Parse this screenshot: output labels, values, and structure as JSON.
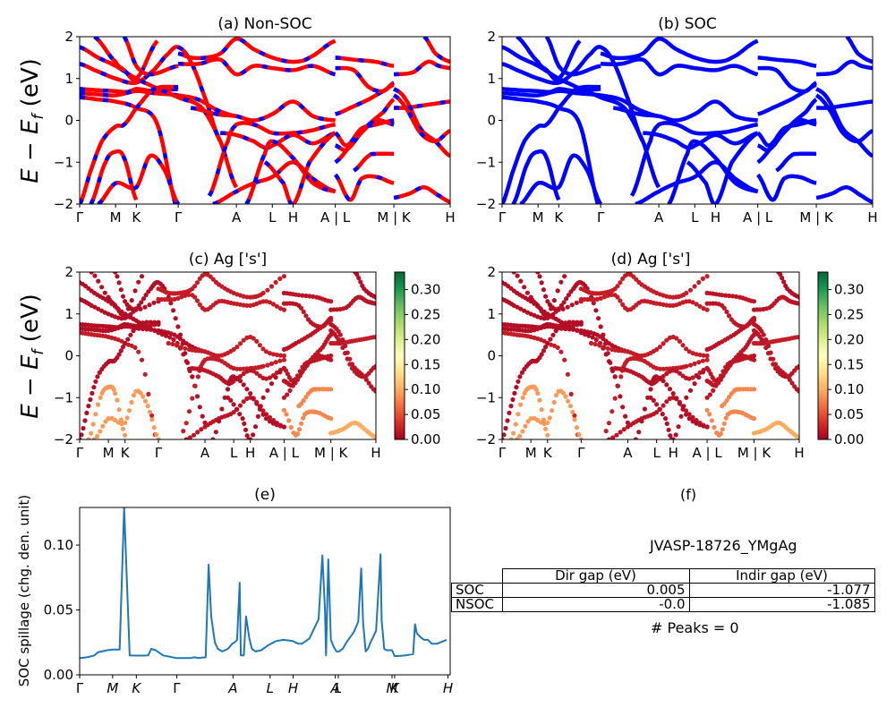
{
  "figure": {
    "ylabel_energy": "E − E_f (eV)",
    "kpath_labels": [
      "Γ",
      "M",
      "K",
      "Γ",
      "A",
      "L",
      "H",
      "A | L",
      "M | K",
      "H"
    ]
  },
  "chart_data": [
    {
      "id": "a",
      "type": "line",
      "title": "(a) Non-SOC",
      "ylabel": "E − E_f (eV)",
      "ylim": [
        -2,
        2
      ],
      "yticks": [
        "2",
        "1",
        "0",
        "−1",
        "−2"
      ],
      "ytick_values": [
        2,
        1,
        0,
        -1,
        -2
      ],
      "xticks": [
        "Γ",
        "M",
        "K",
        "Γ",
        "A",
        "L",
        "H",
        "A | L",
        "M | K",
        "H"
      ],
      "xtick_positions": [
        0,
        0.097,
        0.153,
        0.266,
        0.423,
        0.52,
        0.576,
        0.69,
        0.848,
        1.0
      ],
      "style": "red line with blue dashes",
      "colors": {
        "base": "#ff0000",
        "dash": "#0000ff"
      },
      "series_ref": "bands"
    },
    {
      "id": "b",
      "type": "line",
      "title": "(b) SOC",
      "ylim": [
        -2,
        2
      ],
      "yticks": [
        "2",
        "1",
        "0",
        "−1",
        "−2"
      ],
      "ytick_values": [
        2,
        1,
        0,
        -1,
        -2
      ],
      "xticks": [
        "Γ",
        "M",
        "K",
        "Γ",
        "A",
        "L",
        "H",
        "A | L",
        "M | K",
        "H"
      ],
      "xtick_positions": [
        0,
        0.097,
        0.153,
        0.266,
        0.423,
        0.52,
        0.576,
        0.69,
        0.848,
        1.0
      ],
      "colors": {
        "base": "#0000ff"
      },
      "series_ref": "bands"
    },
    {
      "id": "c",
      "type": "scatter",
      "title": "(c)  Ag ['s']",
      "ylabel": "E − E_f (eV)",
      "ylim": [
        -2,
        2
      ],
      "yticks": [
        "2",
        "1",
        "0",
        "−1",
        "−2"
      ],
      "ytick_values": [
        2,
        1,
        0,
        -1,
        -2
      ],
      "xticks": [
        "Γ",
        "M",
        "K",
        "Γ",
        "A",
        "L",
        "H",
        "A | L",
        "M | K",
        "H"
      ],
      "xtick_positions": [
        0,
        0.097,
        0.153,
        0.266,
        0.423,
        0.52,
        0.576,
        0.69,
        0.848,
        1.0
      ],
      "colorbar": {
        "cmap": "RdYlGn",
        "range": [
          0,
          0.335
        ],
        "ticks": [
          "0.00",
          "0.05",
          "0.10",
          "0.15",
          "0.20",
          "0.25",
          "0.30"
        ],
        "tick_values": [
          0,
          0.05,
          0.1,
          0.15,
          0.2,
          0.25,
          0.3
        ]
      },
      "series_ref": "bands"
    },
    {
      "id": "d",
      "type": "scatter",
      "title": "(d) Ag ['s']",
      "ylim": [
        -2,
        2
      ],
      "yticks": [
        "2",
        "1",
        "0",
        "−1",
        "−2"
      ],
      "ytick_values": [
        2,
        1,
        0,
        -1,
        -2
      ],
      "xticks": [
        "Γ",
        "M",
        "K",
        "Γ",
        "A",
        "L",
        "H",
        "A | L",
        "M | K",
        "H"
      ],
      "xtick_positions": [
        0,
        0.097,
        0.153,
        0.266,
        0.423,
        0.52,
        0.576,
        0.69,
        0.848,
        1.0
      ],
      "colorbar": {
        "cmap": "RdYlGn",
        "range": [
          0,
          0.335
        ],
        "ticks": [
          "0.00",
          "0.05",
          "0.10",
          "0.15",
          "0.20",
          "0.25",
          "0.30"
        ],
        "tick_values": [
          0,
          0.05,
          0.1,
          0.15,
          0.2,
          0.25,
          0.3
        ]
      },
      "series_ref": "bands"
    },
    {
      "id": "e",
      "type": "line",
      "title": "(e)",
      "ylabel": "SOC spillage (chg. den. unit)",
      "ylim": [
        0,
        0.129
      ],
      "xlim": [
        0,
        1
      ],
      "yticks": [
        "0.00",
        "0.05",
        "0.10"
      ],
      "ytick_values": [
        0,
        0.05,
        0.1
      ],
      "xticks": [
        "Γ",
        "M",
        "K",
        "Γ",
        "A",
        "L",
        "H",
        "A",
        "L",
        "M",
        "K",
        "H"
      ],
      "xtick_positions": [
        0,
        0.089,
        0.153,
        0.262,
        0.414,
        0.514,
        0.576,
        0.69,
        0.698,
        0.843,
        0.85,
        0.994
      ],
      "color": "#1f77b4",
      "x": [
        0,
        0.02,
        0.04,
        0.05,
        0.06,
        0.075,
        0.09,
        0.1,
        0.108,
        0.12,
        0.135,
        0.15,
        0.175,
        0.185,
        0.193,
        0.205,
        0.21,
        0.225,
        0.26,
        0.3,
        0.31,
        0.315,
        0.32,
        0.34,
        0.348,
        0.355,
        0.365,
        0.373,
        0.385,
        0.4,
        0.412,
        0.418,
        0.425,
        0.432,
        0.435,
        0.443,
        0.449,
        0.458,
        0.465,
        0.475,
        0.49,
        0.51,
        0.53,
        0.55,
        0.575,
        0.59,
        0.6,
        0.62,
        0.645,
        0.655,
        0.662,
        0.665,
        0.671,
        0.678,
        0.685,
        0.693,
        0.7,
        0.71,
        0.72,
        0.74,
        0.752,
        0.76,
        0.765,
        0.772,
        0.778,
        0.785,
        0.8,
        0.812,
        0.815,
        0.822,
        0.828,
        0.843,
        0.85,
        0.86,
        0.88,
        0.9,
        0.905,
        0.91,
        0.92,
        0.93,
        0.94,
        0.95,
        0.965,
        0.99
      ],
      "y": [
        0.013,
        0.0135,
        0.015,
        0.0175,
        0.018,
        0.019,
        0.0195,
        0.0195,
        0.0195,
        0.129,
        0.015,
        0.0148,
        0.0148,
        0.015,
        0.02,
        0.019,
        0.018,
        0.015,
        0.013,
        0.013,
        0.0135,
        0.0132,
        0.013,
        0.0135,
        0.085,
        0.045,
        0.025,
        0.02,
        0.018,
        0.02,
        0.024,
        0.025,
        0.027,
        0.071,
        0.015,
        0.015,
        0.045,
        0.028,
        0.02,
        0.018,
        0.019,
        0.023,
        0.026,
        0.027,
        0.026,
        0.024,
        0.024,
        0.028,
        0.043,
        0.092,
        0.05,
        0.015,
        0.089,
        0.027,
        0.022,
        0.018,
        0.018,
        0.02,
        0.025,
        0.033,
        0.041,
        0.082,
        0.04,
        0.018,
        0.02,
        0.025,
        0.034,
        0.093,
        0.042,
        0.02,
        0.019,
        0.019,
        0.0145,
        0.0145,
        0.015,
        0.016,
        0.039,
        0.032,
        0.029,
        0.027,
        0.027,
        0.024,
        0.024,
        0.027
      ]
    },
    {
      "id": "f",
      "type": "table",
      "title": "(f)",
      "material": "JVASP-18726_YMgAg",
      "columns": [
        "",
        "Dir gap (eV)",
        "Indir gap (eV)"
      ],
      "rows": [
        {
          "label": "SOC",
          "dir_gap": "0.005",
          "indir_gap": "-1.077"
        },
        {
          "label": "NSOC",
          "dir_gap": "-0.0",
          "indir_gap": "-1.085"
        }
      ],
      "footer": "# Peaks = 0"
    }
  ],
  "bands": [
    {
      "x": [
        0,
        0.05,
        0.097,
        0.153,
        0.21,
        0.266
      ],
      "y": [
        0.55,
        0.5,
        0.45,
        0.3,
        -0.1,
        -2.2
      ],
      "w": 0.02
    },
    {
      "x": [
        0,
        0.05,
        0.097,
        0.13,
        0.153,
        0.2,
        0.266
      ],
      "y": [
        0.75,
        0.72,
        0.7,
        0.68,
        0.75,
        0.7,
        0.75
      ],
      "w": 0.01
    },
    {
      "x": [
        0,
        0.05,
        0.097,
        0.153,
        0.2,
        0.266,
        0.32,
        0.37,
        0.423
      ],
      "y": [
        0.65,
        0.62,
        0.6,
        0.7,
        0.65,
        0.6,
        0.5,
        0.25,
        0.1
      ],
      "w": 0.01
    },
    {
      "x": [
        0,
        0.04,
        0.097,
        0.153,
        0.2,
        0.24,
        0.266,
        0.3,
        0.34,
        0.38
      ],
      "y": [
        1.35,
        1.2,
        1.0,
        0.9,
        1.2,
        1.6,
        1.75,
        1.4,
        0.5,
        -0.5
      ],
      "w": 0.01
    },
    {
      "x": [
        0,
        0.05,
        0.097,
        0.153,
        0.2,
        0.266,
        0.33,
        0.38,
        0.423
      ],
      "y": [
        1.75,
        1.5,
        1.3,
        1.0,
        0.8,
        0.55,
        0.3,
        -0.5,
        -1.6
      ],
      "w": 0.01
    },
    {
      "x": [
        0,
        0.03,
        0.06,
        0.097,
        0.12,
        0.153,
        0.2,
        0.266
      ],
      "y": [
        -2.0,
        -1.2,
        -0.5,
        -0.15,
        -0.1,
        0.3,
        0.75,
        0.8
      ],
      "w": 0.01
    },
    {
      "x": [
        0.03,
        0.07,
        0.097,
        0.12,
        0.153
      ],
      "y": [
        -2,
        -1,
        -0.75,
        -0.9,
        -1.9
      ],
      "w": 0.01
    },
    {
      "x": [
        0.05,
        0.097,
        0.153,
        0.19,
        0.23,
        0.266
      ],
      "y": [
        -2,
        -1.5,
        -1.6,
        -0.85,
        -1.2,
        -2.0
      ],
      "w": 0.05
    },
    {
      "x": [
        0.04,
        0.097,
        0.12,
        0.153,
        0.21
      ],
      "y": [
        2.0,
        1.4,
        1.2,
        1.0,
        1.9
      ],
      "w": 0.01
    },
    {
      "x": [
        0.12,
        0.153,
        0.19,
        0.266
      ],
      "y": [
        2.0,
        1.3,
        1.1,
        1.3
      ],
      "w": 0.01
    },
    {
      "x": [
        0.266,
        0.32,
        0.38,
        0.423,
        0.47,
        0.52,
        0.576,
        0.63,
        0.69
      ],
      "y": [
        1.35,
        1.35,
        1.45,
        1.1,
        1.3,
        1.25,
        1.2,
        1.3,
        1.1
      ],
      "w": 0.02
    },
    {
      "x": [
        0.266,
        0.3,
        0.34,
        0.38,
        0.423,
        0.47,
        0.52,
        0.576,
        0.62,
        0.69
      ],
      "y": [
        1.6,
        1.5,
        1.5,
        1.6,
        1.95,
        1.7,
        1.5,
        1.4,
        1.5,
        1.9
      ],
      "w": 0.02
    },
    {
      "x": [
        0.3,
        0.37,
        0.423,
        0.47,
        0.52,
        0.576,
        0.63,
        0.69
      ],
      "y": [
        0.3,
        0.15,
        0.1,
        0.0,
        0.15,
        0.45,
        0.1,
        0.0
      ],
      "w": 0.02
    },
    {
      "x": [
        0.36,
        0.423,
        0.47,
        0.52,
        0.576,
        0.63,
        0.69
      ],
      "y": [
        -2,
        -1.7,
        -1.5,
        -1.35,
        -1.0,
        -1.4,
        -1.7
      ],
      "w": 0.015
    },
    {
      "x": [
        0.35,
        0.4,
        0.423,
        0.47,
        0.52,
        0.576,
        0.62,
        0.69
      ],
      "y": [
        -1.8,
        -0.5,
        -0.1,
        -0.1,
        -0.3,
        -0.3,
        -0.25,
        -0.1
      ],
      "w": 0.02
    },
    {
      "x": [
        0.38,
        0.423,
        0.47,
        0.5,
        0.52,
        0.576,
        0.63,
        0.69
      ],
      "y": [
        -0.3,
        -0.35,
        -0.5,
        -0.65,
        -0.6,
        -0.35,
        -0.55,
        -0.3
      ],
      "w": 0.015
    },
    {
      "x": [
        0.45,
        0.5,
        0.52,
        0.576,
        0.63,
        0.69
      ],
      "y": [
        -2,
        -0.8,
        -0.5,
        -0.9,
        -1.5,
        -1.7
      ],
      "w": 0.01
    },
    {
      "x": [
        0.5,
        0.55,
        0.576,
        0.62,
        0.69
      ],
      "y": [
        -1.0,
        -1.5,
        -2.0,
        -1.0,
        -0.3
      ],
      "w": 0.01
    },
    {
      "x": [
        0.69,
        0.73,
        0.78,
        0.82,
        0.848
      ],
      "y": [
        0.15,
        0.3,
        0.5,
        0.7,
        0.85
      ],
      "w": 0.015
    },
    {
      "x": [
        0.69,
        0.74,
        0.8,
        0.848
      ],
      "y": [
        1.5,
        1.45,
        1.4,
        1.3
      ],
      "w": 0.015
    },
    {
      "x": [
        0.69,
        0.74,
        0.78,
        0.82,
        0.848
      ],
      "y": [
        1.25,
        1.2,
        0.8,
        0.7,
        0.9
      ],
      "w": 0.015
    },
    {
      "x": [
        0.69,
        0.74,
        0.78,
        0.82,
        0.848
      ],
      "y": [
        -1.0,
        -0.5,
        -0.1,
        0.2,
        0.5
      ],
      "w": 0.015
    },
    {
      "x": [
        0.69,
        0.72,
        0.76,
        0.8,
        0.848
      ],
      "y": [
        -0.6,
        -0.7,
        -0.3,
        0.0,
        -0.1
      ],
      "w": 0.015
    },
    {
      "x": [
        0.69,
        0.72,
        0.76,
        0.8,
        0.848
      ],
      "y": [
        -0.3,
        -0.6,
        -0.2,
        -0.1,
        0.0
      ],
      "w": 0.015
    },
    {
      "x": [
        0.69,
        0.73,
        0.76,
        0.8,
        0.848
      ],
      "y": [
        -1.3,
        -1.9,
        -1.4,
        -1.35,
        -1.5
      ],
      "w": 0.015
    },
    {
      "x": [
        0.74,
        0.78,
        0.8,
        0.848
      ],
      "y": [
        -1.2,
        -0.85,
        -0.8,
        -0.8
      ],
      "w": 0.015
    },
    {
      "x": [
        0.848,
        0.88,
        0.92,
        0.96,
        1.0
      ],
      "y": [
        0.3,
        0.3,
        0.35,
        0.4,
        0.45
      ],
      "w": 0.02
    },
    {
      "x": [
        0.848,
        0.9,
        0.94,
        0.97,
        1.0
      ],
      "y": [
        1.1,
        1.15,
        1.4,
        1.3,
        1.25
      ],
      "w": 0.015
    },
    {
      "x": [
        0.848,
        0.88,
        0.92,
        0.96,
        1.0
      ],
      "y": [
        0.75,
        0.5,
        -0.2,
        -0.5,
        -0.85
      ],
      "w": 0.015
    },
    {
      "x": [
        0.848,
        0.88,
        0.92,
        0.96,
        1.0
      ],
      "y": [
        0.6,
        0.3,
        -0.3,
        -0.5,
        -0.25
      ],
      "w": 0.015
    },
    {
      "x": [
        0.848,
        0.89,
        0.93,
        0.97,
        1.0
      ],
      "y": [
        -1.85,
        -1.75,
        -1.6,
        -1.8,
        -1.95
      ],
      "w": 0.02
    },
    {
      "x": [
        0.93,
        0.96,
        1.0
      ],
      "y": [
        2.0,
        1.6,
        1.4
      ],
      "w": 0.01
    }
  ],
  "orbital_weights": {
    "ranges": [
      {
        "band_index": 7,
        "weight": 0.09
      },
      {
        "band_index": 6,
        "weight": 0.09
      },
      {
        "band_index": 24,
        "weight": 0.08
      },
      {
        "band_index": 30,
        "weight": 0.1
      },
      {
        "band_index": 25,
        "weight": 0.08
      }
    ]
  }
}
